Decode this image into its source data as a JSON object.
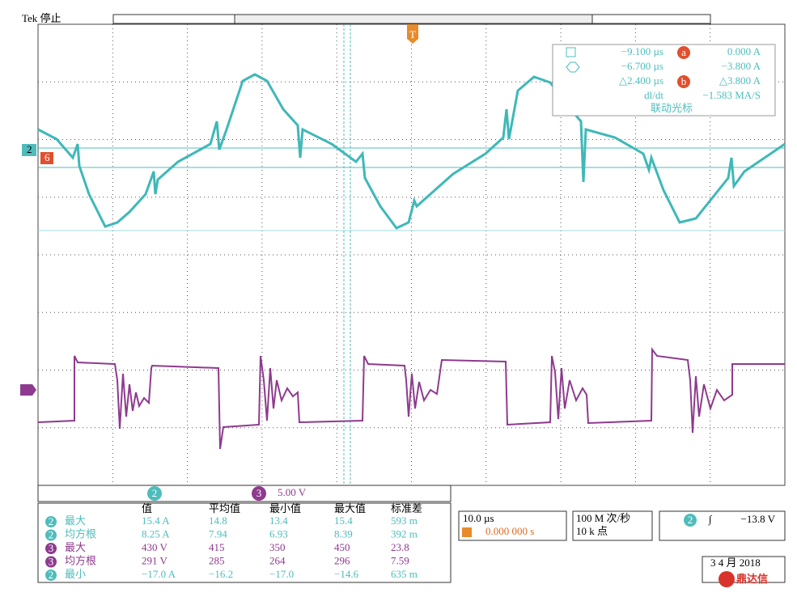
{
  "header": {
    "status": "Tek 停止"
  },
  "trigger_marker": "T",
  "channel_markers": [
    "2",
    "6"
  ],
  "cursor_readout": {
    "rows": [
      {
        "time": "−9.100 µs",
        "badge": "a",
        "value": "0.000 A"
      },
      {
        "time": "−6.700 µs",
        "value": "−3.800 A"
      },
      {
        "time": "△2.400 µs",
        "badge": "b",
        "value": "△3.800 A"
      },
      {
        "time": "dl/dt",
        "value": "−1.583 MA/S"
      }
    ],
    "footer": "联动光标"
  },
  "scale_bar": {
    "channels": [
      "2",
      "3"
    ],
    "value": "5.00 V"
  },
  "measurements": {
    "headers": [
      "值",
      "平均值",
      "最小值",
      "最大值",
      "标准差"
    ],
    "rows": [
      {
        "channel": "2",
        "name": "最大",
        "cells": [
          "15.4 A",
          "14.8",
          "13.4",
          "15.4",
          "593 m"
        ]
      },
      {
        "channel": "2",
        "name": "均方根",
        "cells": [
          "8.25 A",
          "7.94",
          "6.93",
          "8.39",
          "392 m"
        ]
      },
      {
        "channel": "3",
        "name": "最大",
        "cells": [
          "430 V",
          "415",
          "350",
          "450",
          "23.8"
        ]
      },
      {
        "channel": "3",
        "name": "均方根",
        "cells": [
          "291 V",
          "285",
          "264",
          "296",
          "7.59"
        ]
      },
      {
        "channel": "2",
        "name": "最小",
        "cells": [
          "−17.0 A",
          "−16.2",
          "−17.0",
          "−14.6",
          "635 m"
        ]
      }
    ]
  },
  "timebase": {
    "scale": "10.0 µs",
    "position": "0.000 000 s"
  },
  "acquisition": {
    "rate": "100 M 次/秒",
    "length": "10 k 点"
  },
  "trigger": {
    "channel": "2",
    "slope": "∫",
    "level": "−13.8 V"
  },
  "date": "3 4 月 2018",
  "watermark": "鼎达信"
}
